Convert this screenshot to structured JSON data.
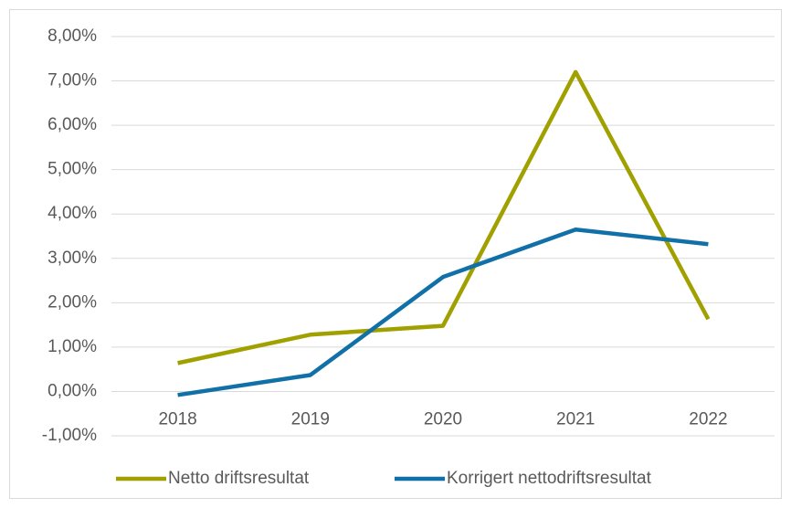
{
  "chart_data": {
    "type": "line",
    "categories": [
      "2018",
      "2019",
      "2020",
      "2021",
      "2022"
    ],
    "series": [
      {
        "name": "Netto driftsresultat",
        "color": "#a0a000",
        "values": [
          0.64,
          1.28,
          1.48,
          7.2,
          1.63
        ]
      },
      {
        "name": "Korrigert nettodriftsresultat",
        "color": "#1170a8",
        "values": [
          -0.08,
          0.37,
          2.58,
          3.65,
          3.32
        ]
      }
    ],
    "ylim": [
      -1,
      8
    ],
    "yticks": [
      {
        "value": -1,
        "label": "-1,00%"
      },
      {
        "value": 0,
        "label": "0,00%"
      },
      {
        "value": 1,
        "label": "1,00%"
      },
      {
        "value": 2,
        "label": "2,00%"
      },
      {
        "value": 3,
        "label": "3,00%"
      },
      {
        "value": 4,
        "label": "4,00%"
      },
      {
        "value": 5,
        "label": "5,00%"
      },
      {
        "value": 6,
        "label": "6,00%"
      },
      {
        "value": 7,
        "label": "7,00%"
      },
      {
        "value": 8,
        "label": "8,00%"
      }
    ],
    "grid": true,
    "legend": "bottom"
  }
}
